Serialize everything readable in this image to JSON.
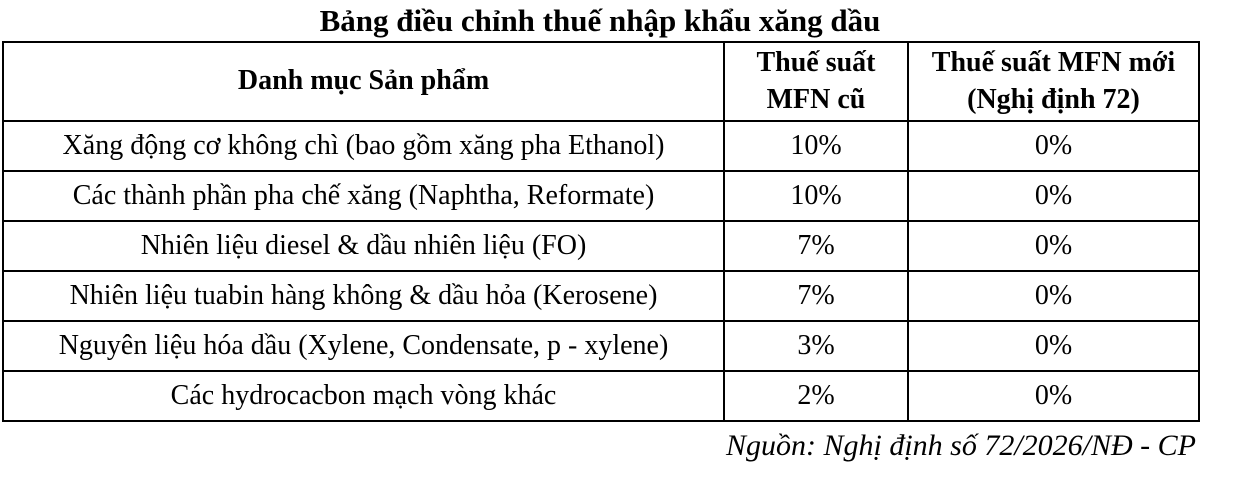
{
  "title": "Bảng điều chỉnh thuế nhập khẩu xăng dầu",
  "table": {
    "columns": [
      {
        "label": "Danh mục Sản phẩm"
      },
      {
        "label": "Thuế suất MFN cũ"
      },
      {
        "label": "Thuế suất MFN mới (Nghị định 72)"
      }
    ],
    "rows": [
      {
        "product": "Xăng động cơ không chì (bao gồm xăng pha Ethanol)",
        "old_rate": "10%",
        "new_rate": "0%"
      },
      {
        "product": "Các thành phần pha chế xăng (Naphtha, Reformate)",
        "old_rate": "10%",
        "new_rate": "0%"
      },
      {
        "product": "Nhiên liệu diesel & dầu nhiên liệu (FO)",
        "old_rate": "7%",
        "new_rate": "0%"
      },
      {
        "product": "Nhiên liệu tuabin hàng không & dầu hỏa (Kerosene)",
        "old_rate": "7%",
        "new_rate": "0%"
      },
      {
        "product": "Nguyên liệu hóa dầu (Xylene, Condensate, p - xylene)",
        "old_rate": "3%",
        "new_rate": "0%"
      },
      {
        "product": "Các hydrocacbon mạch vòng khác",
        "old_rate": "2%",
        "new_rate": "0%"
      }
    ]
  },
  "source": "Nguồn: Nghị định số 72/2026/NĐ - CP",
  "colors": {
    "text": "#000000",
    "background": "#ffffff",
    "border": "#000000"
  },
  "chart_data": {
    "type": "table",
    "title": "Bảng điều chỉnh thuế nhập khẩu xăng dầu",
    "columns": [
      "Danh mục Sản phẩm",
      "Thuế suất MFN cũ",
      "Thuế suất MFN mới (Nghị định 72)"
    ],
    "rows": [
      [
        "Xăng động cơ không chì (bao gồm xăng pha Ethanol)",
        "10%",
        "0%"
      ],
      [
        "Các thành phần pha chế xăng (Naphtha, Reformate)",
        "10%",
        "0%"
      ],
      [
        "Nhiên liệu diesel & dầu nhiên liệu (FO)",
        "7%",
        "0%"
      ],
      [
        "Nhiên liệu tuabin hàng không & dầu hỏa (Kerosene)",
        "7%",
        "0%"
      ],
      [
        "Nguyên liệu hóa dầu (Xylene, Condensate, p - xylene)",
        "3%",
        "0%"
      ],
      [
        "Các hydrocacbon mạch vòng khác",
        "2%",
        "0%"
      ]
    ],
    "source_note": "Nguồn: Nghị định số 72/2026/NĐ - CP"
  }
}
